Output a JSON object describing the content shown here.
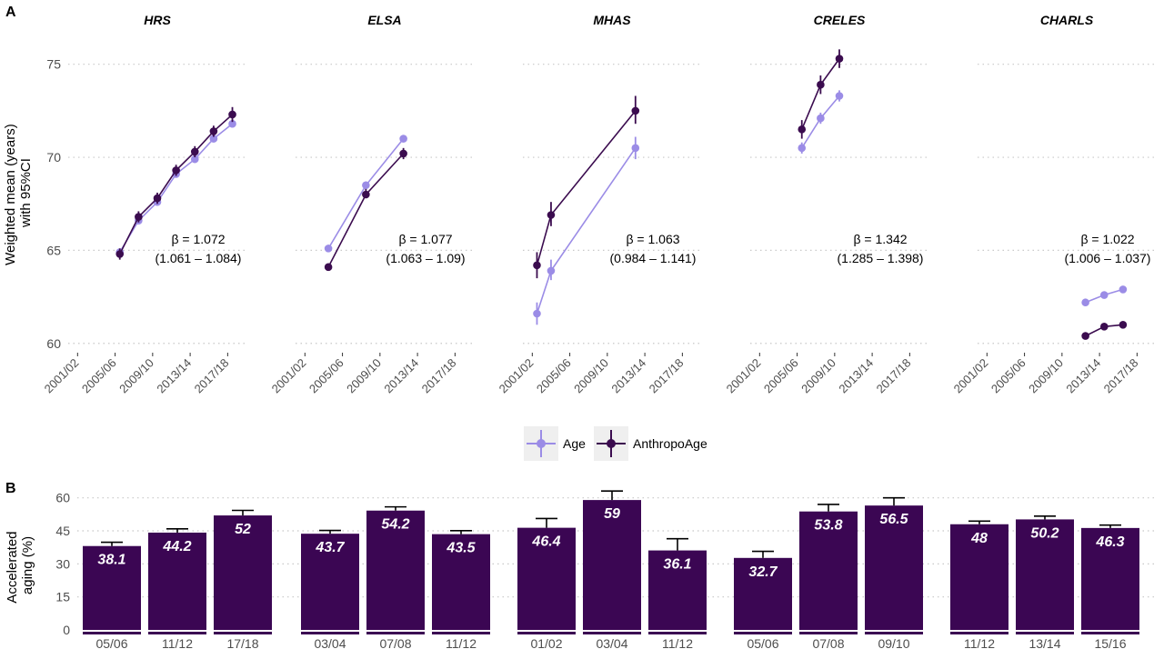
{
  "panel_labels": {
    "a": "A",
    "b": "B"
  },
  "legend": {
    "items": [
      "Age",
      "AnthropoAge"
    ]
  },
  "colors": {
    "age": "#9b8ce6",
    "anthropo": "#3b0c4f",
    "bar": "#3b0653",
    "grid": "#c8c8c8",
    "axis_text": "#4d4d4d"
  },
  "chart_data": [
    {
      "type": "line",
      "panel": "A",
      "ylabel": "Weighted mean (years)\nwith 95%CI",
      "ylim": [
        59.5,
        76.5
      ],
      "y_ticks": [
        60,
        65,
        70,
        75
      ],
      "x_tick_labels": [
        "2001/02",
        "2005/06",
        "2009/10",
        "2013/14",
        "2017/18"
      ],
      "x_range": [
        2000.5,
        2019.5
      ],
      "grid": "horizontal dotted",
      "legend_position": "bottom",
      "facets": [
        {
          "title": "HRS",
          "beta": "β = 1.072",
          "ci": "(1.061 – 1.084)",
          "series": [
            {
              "name": "Age",
              "x": [
                2006,
                2008,
                2010,
                2012,
                2014,
                2016,
                2018
              ],
              "y": [
                64.9,
                66.6,
                67.6,
                69.1,
                69.9,
                71.0,
                71.8
              ],
              "lo": [
                64.7,
                66.4,
                67.4,
                68.9,
                69.7,
                70.8,
                71.6
              ],
              "hi": [
                65.1,
                66.8,
                67.8,
                69.3,
                70.1,
                71.2,
                72.0
              ]
            },
            {
              "name": "AnthropoAge",
              "x": [
                2006,
                2008,
                2010,
                2012,
                2014,
                2016,
                2018
              ],
              "y": [
                64.8,
                66.8,
                67.8,
                69.3,
                70.3,
                71.4,
                72.3
              ],
              "lo": [
                64.5,
                66.5,
                67.5,
                69.0,
                70.0,
                71.1,
                71.9
              ],
              "hi": [
                65.1,
                67.1,
                68.1,
                69.6,
                70.6,
                71.7,
                72.7
              ]
            }
          ]
        },
        {
          "title": "ELSA",
          "beta": "β = 1.077",
          "ci": "(1.063 – 1.09)",
          "series": [
            {
              "name": "Age",
              "x": [
                2004,
                2008,
                2012
              ],
              "y": [
                65.1,
                68.5,
                71.0
              ],
              "lo": [
                64.9,
                68.3,
                70.8
              ],
              "hi": [
                65.3,
                68.7,
                71.2
              ]
            },
            {
              "name": "AnthropoAge",
              "x": [
                2004,
                2008,
                2012
              ],
              "y": [
                64.1,
                68.0,
                70.2
              ],
              "lo": [
                63.9,
                67.8,
                69.9
              ],
              "hi": [
                64.3,
                68.3,
                70.5
              ]
            }
          ]
        },
        {
          "title": "MHAS",
          "beta": "β = 1.063",
          "ci": "(0.984 – 1.141)",
          "series": [
            {
              "name": "Age",
              "x": [
                2002,
                2003.5,
                2012.5
              ],
              "y": [
                61.6,
                63.9,
                70.5
              ],
              "lo": [
                61.0,
                63.4,
                69.9
              ],
              "hi": [
                62.2,
                64.5,
                71.1
              ]
            },
            {
              "name": "AnthropoAge",
              "x": [
                2002,
                2003.5,
                2012.5
              ],
              "y": [
                64.2,
                66.9,
                72.5
              ],
              "lo": [
                63.5,
                66.3,
                71.8
              ],
              "hi": [
                64.9,
                67.6,
                73.3
              ]
            }
          ]
        },
        {
          "title": "CRELES",
          "beta": "β = 1.342",
          "ci": "(1.285 – 1.398)",
          "series": [
            {
              "name": "Age",
              "x": [
                2006,
                2008,
                2010
              ],
              "y": [
                70.5,
                72.1,
                73.3
              ],
              "lo": [
                70.2,
                71.8,
                73.0
              ],
              "hi": [
                70.8,
                72.4,
                73.6
              ]
            },
            {
              "name": "AnthropoAge",
              "x": [
                2006,
                2008,
                2010
              ],
              "y": [
                71.5,
                73.9,
                75.3
              ],
              "lo": [
                71.0,
                73.4,
                74.8
              ],
              "hi": [
                72.0,
                74.4,
                75.8
              ]
            }
          ]
        },
        {
          "title": "CHARLS",
          "beta": "β = 1.022",
          "ci": "(1.006 – 1.037)",
          "series": [
            {
              "name": "Age",
              "x": [
                2012,
                2014,
                2016
              ],
              "y": [
                62.2,
                62.6,
                62.9
              ],
              "lo": [
                62.1,
                62.5,
                62.8
              ],
              "hi": [
                62.3,
                62.7,
                63.0
              ]
            },
            {
              "name": "AnthropoAge",
              "x": [
                2012,
                2014,
                2016
              ],
              "y": [
                60.4,
                60.9,
                61.0
              ],
              "lo": [
                60.3,
                60.8,
                60.9
              ],
              "hi": [
                60.5,
                61.0,
                61.1
              ]
            }
          ]
        }
      ]
    },
    {
      "type": "bar",
      "panel": "B",
      "ylabel": "Accelerated\naging (%)",
      "ylim": [
        0,
        64
      ],
      "y_ticks": [
        0,
        15,
        30,
        45,
        60
      ],
      "grid": "horizontal dotted",
      "groups": [
        {
          "categories": [
            "05/06",
            "11/12",
            "17/18"
          ],
          "values": [
            38.1,
            44.2,
            52
          ],
          "labels": [
            "38.1",
            "44.2",
            "52"
          ],
          "err_hi": [
            39.8,
            45.9,
            54.3
          ]
        },
        {
          "categories": [
            "03/04",
            "07/08",
            "11/12"
          ],
          "values": [
            43.7,
            54.2,
            43.5
          ],
          "labels": [
            "43.7",
            "54.2",
            "43.5"
          ],
          "err_hi": [
            45.2,
            55.9,
            45.1
          ]
        },
        {
          "categories": [
            "01/02",
            "03/04",
            "11/12"
          ],
          "values": [
            46.4,
            59,
            36.1
          ],
          "labels": [
            "46.4",
            "59",
            "36.1"
          ],
          "err_hi": [
            50.6,
            63.1,
            41.4
          ]
        },
        {
          "categories": [
            "05/06",
            "07/08",
            "09/10"
          ],
          "values": [
            32.7,
            53.8,
            56.5
          ],
          "labels": [
            "32.7",
            "53.8",
            "56.5"
          ],
          "err_hi": [
            35.7,
            57.0,
            60.0
          ]
        },
        {
          "categories": [
            "11/12",
            "13/14",
            "15/16"
          ],
          "values": [
            48,
            50.2,
            46.3
          ],
          "labels": [
            "48",
            "50.2",
            "46.3"
          ],
          "err_hi": [
            49.4,
            51.7,
            47.6
          ]
        }
      ]
    }
  ]
}
